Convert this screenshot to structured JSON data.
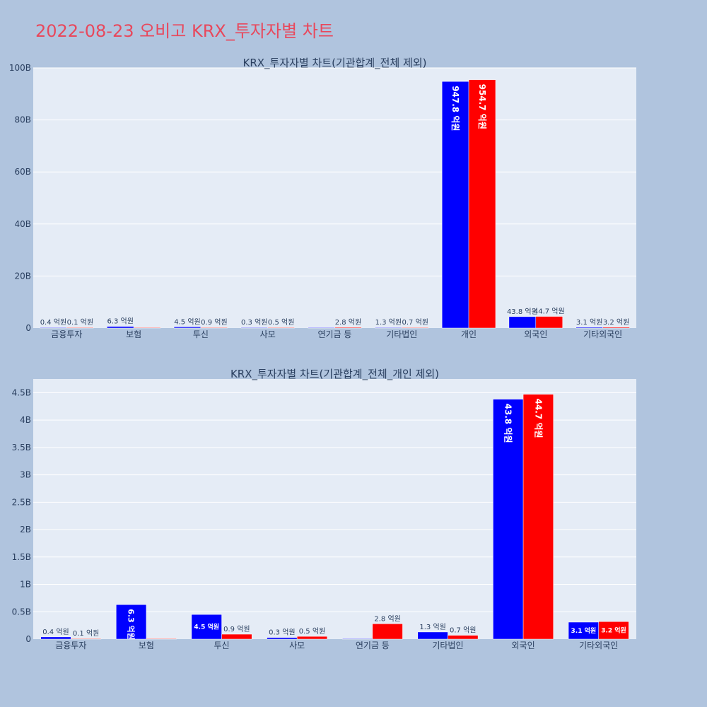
{
  "title": "2022-08-23 오비고 KRX_투자자별 차트",
  "colors": {
    "background": "#b0c4de",
    "title": "#e8485c",
    "plot_bg": "#e5ecf6",
    "series_a": "#0000ff",
    "series_b": "#ff0000"
  },
  "chart_data": [
    {
      "type": "bar",
      "title": "KRX_투자자별 차트(기관합계_전체 제외)",
      "categories": [
        "금융투자",
        "보험",
        "투신",
        "사모",
        "연기금 등",
        "기타법인",
        "개인",
        "외국인",
        "기타외국인"
      ],
      "series": [
        {
          "values": [
            0.04,
            0.63,
            0.45,
            0.03,
            0.0,
            0.13,
            94.78,
            4.38,
            0.31
          ],
          "labels": [
            "0.4 억원",
            "6.3 억원",
            "4.5 억원",
            "0.3 억원",
            "",
            "1.3 억원",
            "947.8 억원",
            "43.8 억원",
            "3.1 억원"
          ]
        },
        {
          "values": [
            0.01,
            0.0,
            0.09,
            0.05,
            0.28,
            0.07,
            95.47,
            4.47,
            0.32
          ],
          "labels": [
            "0.1 억원",
            "",
            "0.9 억원",
            "0.5 억원",
            "2.8 억원",
            "0.7 억원",
            "954.7 억원",
            "44.7 억원",
            "3.2 억원"
          ]
        }
      ],
      "ylim": [
        0,
        100
      ],
      "yticks": [
        0,
        20,
        40,
        60,
        80,
        100
      ],
      "yticklabels": [
        "0",
        "20B",
        "40B",
        "60B",
        "80B",
        "100B"
      ],
      "grid": true
    },
    {
      "type": "bar",
      "title": "KRX_투자자별 차트(기관합계_전체_개인 제외)",
      "categories": [
        "금융투자",
        "보험",
        "투신",
        "사모",
        "연기금 등",
        "기타법인",
        "외국인",
        "기타외국인"
      ],
      "series": [
        {
          "values": [
            0.04,
            0.63,
            0.45,
            0.03,
            0.0,
            0.13,
            4.38,
            0.31
          ],
          "labels": [
            "0.4 억원",
            "6.3 억원",
            "4.5 억원",
            "0.3 억원",
            "",
            "1.3 억원",
            "43.8 억원",
            "3.1 억원"
          ]
        },
        {
          "values": [
            0.01,
            0.0,
            0.09,
            0.05,
            0.28,
            0.07,
            4.47,
            0.32
          ],
          "labels": [
            "0.1 억원",
            "",
            "0.9 억원",
            "0.5 억원",
            "2.8 억원",
            "0.7 억원",
            "44.7 억원",
            "3.2 억원"
          ]
        }
      ],
      "ylim": [
        0,
        4.75
      ],
      "yticks": [
        0,
        0.5,
        1,
        1.5,
        2,
        2.5,
        3,
        3.5,
        4,
        4.5
      ],
      "yticklabels": [
        "0",
        "0.5B",
        "1B",
        "1.5B",
        "2B",
        "2.5B",
        "3B",
        "3.5B",
        "4B",
        "4.5B"
      ],
      "grid": true
    }
  ]
}
